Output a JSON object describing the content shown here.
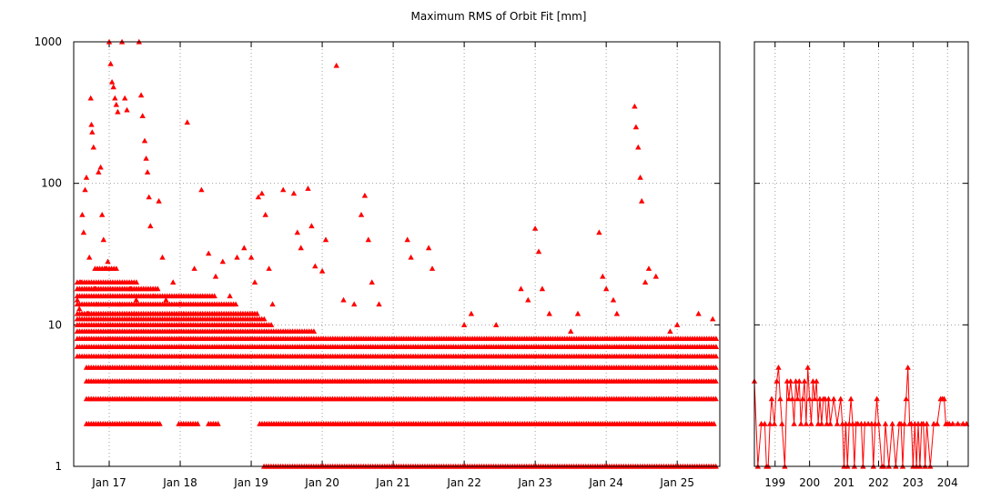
{
  "chart_data": [
    {
      "type": "scatter",
      "title": "Maximum RMS of Orbit Fit [mm]",
      "yscale": "log",
      "ylim": [
        1,
        1000
      ],
      "yticks": [
        {
          "value": 1,
          "label": "1"
        },
        {
          "value": 10,
          "label": "10"
        },
        {
          "value": 100,
          "label": "100"
        },
        {
          "value": 1000,
          "label": "1000"
        }
      ],
      "xlim": [
        16.5,
        25.6
      ],
      "xticks": [
        {
          "value": 17,
          "label": "Jan 17"
        },
        {
          "value": 18,
          "label": "Jan 18"
        },
        {
          "value": 19,
          "label": "Jan 19"
        },
        {
          "value": 20,
          "label": "Jan 20"
        },
        {
          "value": 21,
          "label": "Jan 21"
        },
        {
          "value": 22,
          "label": "Jan 22"
        },
        {
          "value": 23,
          "label": "Jan 23"
        },
        {
          "value": 24,
          "label": "Jan 24"
        },
        {
          "value": 25,
          "label": "Jan 25"
        }
      ],
      "grid": true,
      "marker": "triangle",
      "color": "#ff0000",
      "series": [
        {
          "points": [
            [
              16.55,
              15
            ],
            [
              16.58,
              13
            ],
            [
              16.6,
              20
            ],
            [
              16.62,
              60
            ],
            [
              16.64,
              45
            ],
            [
              16.66,
              90
            ],
            [
              16.68,
              110
            ],
            [
              16.7,
              12
            ],
            [
              16.72,
              30
            ],
            [
              16.74,
              400
            ],
            [
              16.75,
              260
            ],
            [
              16.76,
              230
            ],
            [
              16.78,
              180
            ],
            [
              16.8,
              18
            ],
            [
              16.82,
              14
            ],
            [
              16.85,
              120
            ],
            [
              16.88,
              130
            ],
            [
              16.9,
              60
            ],
            [
              16.92,
              40
            ],
            [
              16.95,
              25
            ],
            [
              16.98,
              28
            ],
            [
              17.0,
              1000
            ],
            [
              17.02,
              700
            ],
            [
              17.04,
              520
            ],
            [
              17.06,
              480
            ],
            [
              17.08,
              400
            ],
            [
              17.1,
              360
            ],
            [
              17.12,
              320
            ],
            [
              17.15,
              14
            ],
            [
              17.18,
              1000
            ],
            [
              17.22,
              400
            ],
            [
              17.25,
              330
            ],
            [
              17.3,
              18
            ],
            [
              17.35,
              12
            ],
            [
              17.38,
              15
            ],
            [
              17.42,
              1000
            ],
            [
              17.45,
              420
            ],
            [
              17.47,
              300
            ],
            [
              17.5,
              200
            ],
            [
              17.52,
              150
            ],
            [
              17.54,
              120
            ],
            [
              17.56,
              80
            ],
            [
              17.58,
              50
            ],
            [
              17.62,
              16
            ],
            [
              17.7,
              75
            ],
            [
              17.75,
              30
            ],
            [
              17.8,
              15
            ],
            [
              17.9,
              20
            ],
            [
              18.0,
              14
            ],
            [
              18.05,
              12
            ],
            [
              18.1,
              270
            ],
            [
              18.2,
              25
            ],
            [
              18.3,
              90
            ],
            [
              18.4,
              32
            ],
            [
              18.5,
              22
            ],
            [
              18.6,
              28
            ],
            [
              18.7,
              16
            ],
            [
              18.8,
              30
            ],
            [
              18.9,
              35
            ],
            [
              19.0,
              30
            ],
            [
              19.05,
              20
            ],
            [
              19.1,
              80
            ],
            [
              19.15,
              85
            ],
            [
              19.2,
              60
            ],
            [
              19.25,
              25
            ],
            [
              19.3,
              14
            ],
            [
              19.45,
              90
            ],
            [
              19.6,
              85
            ],
            [
              19.65,
              45
            ],
            [
              19.7,
              35
            ],
            [
              19.8,
              92
            ],
            [
              19.85,
              50
            ],
            [
              19.9,
              26
            ],
            [
              20.0,
              24
            ],
            [
              20.05,
              40
            ],
            [
              20.2,
              680
            ],
            [
              20.3,
              15
            ],
            [
              20.45,
              14
            ],
            [
              20.55,
              60
            ],
            [
              20.6,
              82
            ],
            [
              20.65,
              40
            ],
            [
              20.7,
              20
            ],
            [
              20.8,
              14
            ],
            [
              21.2,
              40
            ],
            [
              21.25,
              30
            ],
            [
              21.5,
              35
            ],
            [
              21.55,
              25
            ],
            [
              22.0,
              10
            ],
            [
              22.1,
              12
            ],
            [
              22.45,
              10
            ],
            [
              22.8,
              18
            ],
            [
              22.9,
              15
            ],
            [
              23.0,
              48
            ],
            [
              23.05,
              33
            ],
            [
              23.1,
              18
            ],
            [
              23.2,
              12
            ],
            [
              23.5,
              9
            ],
            [
              23.6,
              12
            ],
            [
              23.9,
              45
            ],
            [
              23.95,
              22
            ],
            [
              24.0,
              18
            ],
            [
              24.1,
              15
            ],
            [
              24.15,
              12
            ],
            [
              24.4,
              350
            ],
            [
              24.42,
              250
            ],
            [
              24.45,
              180
            ],
            [
              24.48,
              110
            ],
            [
              24.5,
              75
            ],
            [
              24.55,
              20
            ],
            [
              24.6,
              25
            ],
            [
              24.7,
              22
            ],
            [
              24.9,
              9
            ],
            [
              25.0,
              10
            ],
            [
              25.3,
              12
            ],
            [
              25.5,
              11
            ]
          ]
        }
      ],
      "dense_bands": [
        {
          "value": 1,
          "from": 19.18,
          "to": 25.55
        },
        {
          "value": 2,
          "from": 16.68,
          "to": 17.72
        },
        {
          "value": 2,
          "from": 17.98,
          "to": 18.25
        },
        {
          "value": 2,
          "from": 18.4,
          "to": 18.55
        },
        {
          "value": 2,
          "from": 19.12,
          "to": 25.55
        },
        {
          "value": 3,
          "from": 16.68,
          "to": 25.55
        },
        {
          "value": 4,
          "from": 16.68,
          "to": 25.55
        },
        {
          "value": 5,
          "from": 16.68,
          "to": 25.55
        },
        {
          "value": 6,
          "from": 16.55,
          "to": 25.55
        },
        {
          "value": 7,
          "from": 16.55,
          "to": 25.55
        },
        {
          "value": 8,
          "from": 16.55,
          "to": 25.55
        },
        {
          "value": 9,
          "from": 16.55,
          "to": 19.9
        },
        {
          "value": 10,
          "from": 16.55,
          "to": 19.3
        },
        {
          "value": 11,
          "from": 16.55,
          "to": 19.2
        },
        {
          "value": 12,
          "from": 16.55,
          "to": 19.1
        },
        {
          "value": 14,
          "from": 16.55,
          "to": 18.8
        },
        {
          "value": 16,
          "from": 16.55,
          "to": 18.5
        },
        {
          "value": 18,
          "from": 16.55,
          "to": 17.7
        },
        {
          "value": 20,
          "from": 16.55,
          "to": 17.4
        },
        {
          "value": 25,
          "from": 16.8,
          "to": 17.1
        }
      ]
    },
    {
      "type": "line",
      "yscale": "log",
      "ylim": [
        1,
        1000
      ],
      "xlim": [
        198.4,
        204.6
      ],
      "xticks": [
        {
          "value": 199,
          "label": "199"
        },
        {
          "value": 200,
          "label": "200"
        },
        {
          "value": 201,
          "label": "201"
        },
        {
          "value": 202,
          "label": "202"
        },
        {
          "value": 203,
          "label": "203"
        },
        {
          "value": 204,
          "label": "204"
        }
      ],
      "grid": true,
      "marker": "triangle",
      "color": "#ff0000",
      "series": [
        {
          "points": [
            [
              198.4,
              4
            ],
            [
              198.5,
              1
            ],
            [
              198.6,
              2
            ],
            [
              198.7,
              2
            ],
            [
              198.75,
              1
            ],
            [
              198.8,
              1
            ],
            [
              198.85,
              2
            ],
            [
              198.9,
              3
            ],
            [
              198.98,
              2
            ],
            [
              199.05,
              4
            ],
            [
              199.1,
              5
            ],
            [
              199.15,
              3
            ],
            [
              199.2,
              2
            ],
            [
              199.28,
              1
            ],
            [
              199.35,
              4
            ],
            [
              199.4,
              3
            ],
            [
              199.45,
              4
            ],
            [
              199.5,
              3
            ],
            [
              199.55,
              2
            ],
            [
              199.6,
              4
            ],
            [
              199.65,
              3
            ],
            [
              199.7,
              4
            ],
            [
              199.75,
              2
            ],
            [
              199.8,
              3
            ],
            [
              199.85,
              4
            ],
            [
              199.9,
              2
            ],
            [
              199.95,
              5
            ],
            [
              200.0,
              3
            ],
            [
              200.05,
              2
            ],
            [
              200.1,
              4
            ],
            [
              200.15,
              3
            ],
            [
              200.2,
              4
            ],
            [
              200.25,
              2
            ],
            [
              200.3,
              3
            ],
            [
              200.35,
              2
            ],
            [
              200.4,
              3
            ],
            [
              200.45,
              3
            ],
            [
              200.5,
              2
            ],
            [
              200.55,
              3
            ],
            [
              200.6,
              2
            ],
            [
              200.7,
              3
            ],
            [
              200.8,
              2
            ],
            [
              200.9,
              3
            ],
            [
              200.95,
              2
            ],
            [
              201.0,
              1
            ],
            [
              201.05,
              2
            ],
            [
              201.1,
              1
            ],
            [
              201.15,
              2
            ],
            [
              201.2,
              3
            ],
            [
              201.25,
              2
            ],
            [
              201.3,
              1
            ],
            [
              201.35,
              2
            ],
            [
              201.4,
              2
            ],
            [
              201.5,
              2
            ],
            [
              201.55,
              1
            ],
            [
              201.6,
              2
            ],
            [
              201.7,
              2
            ],
            [
              201.8,
              2
            ],
            [
              201.85,
              1
            ],
            [
              201.9,
              2
            ],
            [
              201.95,
              3
            ],
            [
              202.0,
              2
            ],
            [
              202.1,
              1
            ],
            [
              202.15,
              1
            ],
            [
              202.2,
              2
            ],
            [
              202.3,
              1
            ],
            [
              202.4,
              2
            ],
            [
              202.5,
              1
            ],
            [
              202.6,
              2
            ],
            [
              202.65,
              2
            ],
            [
              202.7,
              1
            ],
            [
              202.75,
              2
            ],
            [
              202.8,
              3
            ],
            [
              202.85,
              5
            ],
            [
              202.9,
              2
            ],
            [
              202.95,
              2
            ],
            [
              203.0,
              1
            ],
            [
              203.05,
              2
            ],
            [
              203.1,
              1
            ],
            [
              203.15,
              2
            ],
            [
              203.2,
              1
            ],
            [
              203.25,
              2
            ],
            [
              203.3,
              2
            ],
            [
              203.35,
              1
            ],
            [
              203.4,
              2
            ],
            [
              203.5,
              1
            ],
            [
              203.6,
              2
            ],
            [
              203.7,
              2
            ],
            [
              203.8,
              3
            ],
            [
              203.85,
              3
            ],
            [
              203.9,
              3
            ],
            [
              203.95,
              2
            ],
            [
              204.0,
              2
            ],
            [
              204.05,
              2
            ],
            [
              204.15,
              2
            ],
            [
              204.3,
              2
            ],
            [
              204.45,
              2
            ],
            [
              204.55,
              2
            ]
          ]
        }
      ]
    }
  ]
}
